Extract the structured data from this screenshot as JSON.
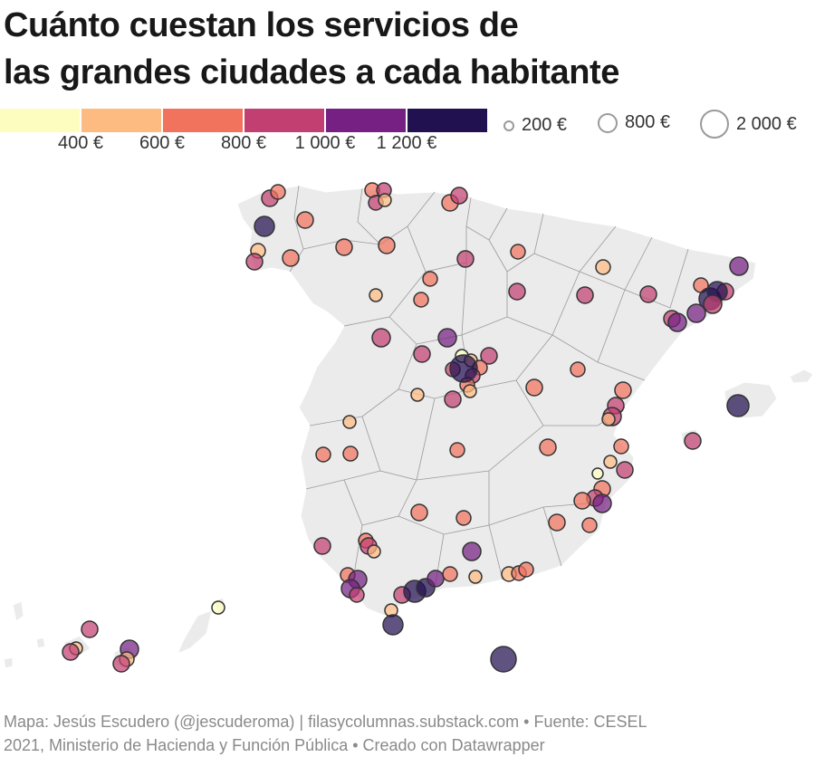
{
  "title_line1": "Cuánto cuestan los servicios de",
  "title_line2": "las grandes ciudades a cada habitante",
  "color_legend": {
    "colors": [
      "#fcfdbf",
      "#febb81",
      "#f1735e",
      "#c23f71",
      "#752082",
      "#221150"
    ],
    "ticks": [
      "400 €",
      "600 €",
      "800 €",
      "1 000 €",
      "1 200 €"
    ]
  },
  "size_legend": [
    {
      "label": "200 €"
    },
    {
      "label": "800 €"
    },
    {
      "label": "2 000 €"
    }
  ],
  "footer_line1": "Mapa: Jesús Escudero (@jescuderoma) | filasycolumnas.substack.com • Fuente: CESEL",
  "footer_line2": "2021, Ministerio de Hacienda y Función Pública • Creado con Datawrapper"
}
